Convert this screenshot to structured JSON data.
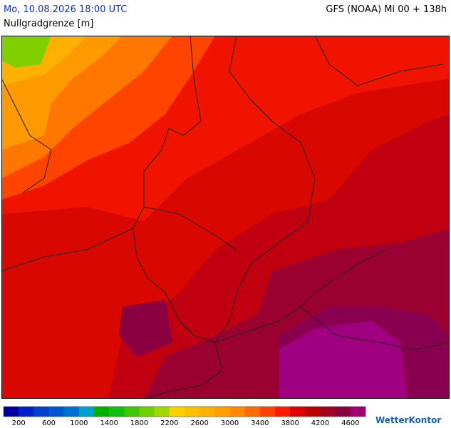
{
  "header": {
    "title": "Mo, 10.08.2026 18:00 UTC",
    "model": "GFS (NOAA) Mi 00 + 138h",
    "subtitle": "Nullgradgrenze [m]"
  },
  "colorbar": {
    "colors": [
      "#0000a0",
      "#0020c8",
      "#0040d0",
      "#0058d0",
      "#0070d0",
      "#00a0d0",
      "#00b000",
      "#10c010",
      "#40c800",
      "#70d000",
      "#a0d800",
      "#ffd000",
      "#ffc000",
      "#ffb000",
      "#ffa000",
      "#ff8800",
      "#ff6a00",
      "#ff4400",
      "#ff1a00",
      "#e00000",
      "#c00000",
      "#a00020",
      "#880040",
      "#a00070"
    ],
    "labels": [
      200,
      600,
      1000,
      1400,
      1800,
      2200,
      2600,
      3000,
      3400,
      3800,
      4200,
      4600
    ]
  },
  "logo": "WetterKontor"
}
